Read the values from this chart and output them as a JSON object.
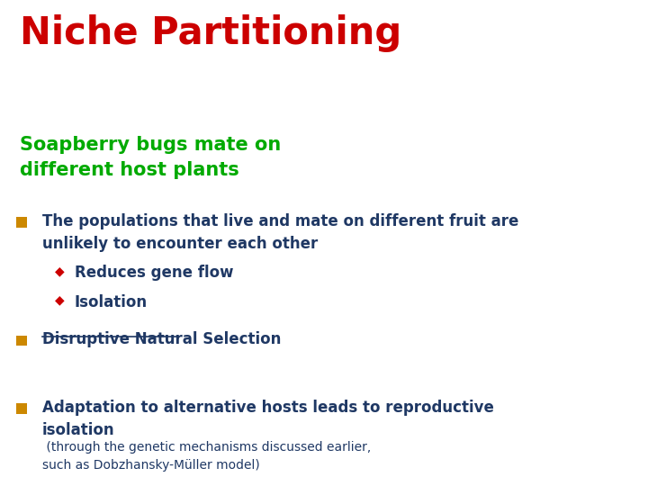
{
  "title": "Niche Partitioning",
  "title_color": "#CC0000",
  "subtitle": "Soapberry bugs mate on\ndifferent host plants",
  "subtitle_color": "#00AA00",
  "background_color": "#FFFFFF",
  "bullet_square_color": "#CC8800",
  "diamond_color": "#CC0000",
  "bullet1_text": "The populations that live and mate on different fruit are\nunlikely to encounter each other",
  "sub_bullet1": "Reduces gene flow",
  "sub_bullet2": "Isolation",
  "bullet2_text": "Disruptive Natural Selection",
  "bullet3_main": "Adaptation to alternative hosts leads to reproductive\nisolation",
  "bullet3_sub": " (through the genetic mechanisms discussed earlier,\nsuch as Dobzhansky-Müller model)",
  "text_color": "#1F3864",
  "bullet3_sub_color": "#1F3864"
}
